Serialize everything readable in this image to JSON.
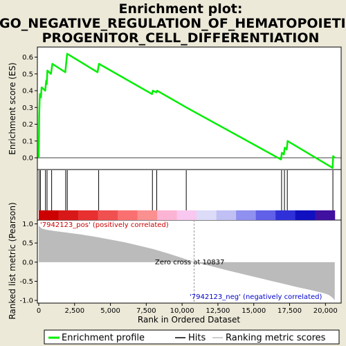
{
  "chart_data": {
    "type": "line",
    "title_lines": [
      "Enrichment plot:",
      "GO_NEGATIVE_REGULATION_OF_HEMATOPOIETIC_",
      "PROGENITOR_CELL_DIFFERENTIATION"
    ],
    "xlabel": "Rank in Ordered Dataset",
    "ylabel_top": "Enrichment score (ES)",
    "ylabel_bottom": "Ranked list metric (Pearson)",
    "xlim": [
      0,
      21000
    ],
    "x_ticks": [
      0,
      2500,
      5000,
      7500,
      10000,
      12500,
      15000,
      17500,
      20000
    ],
    "x_tick_labels": [
      "0",
      "2,500",
      "5,000",
      "7,500",
      "10,000",
      "12,500",
      "15,000",
      "17,500",
      "20,000"
    ],
    "es_ylim": [
      -0.07,
      0.66
    ],
    "es_ticks": [
      0.0,
      0.1,
      0.2,
      0.3,
      0.4,
      0.5,
      0.6
    ],
    "es_tick_labels": [
      "0.0",
      "0.1",
      "0.2",
      "0.3",
      "0.4",
      "0.5",
      "0.6"
    ],
    "metric_ylim": [
      -1.07,
      1.1
    ],
    "metric_ticks": [
      1.0,
      0.5,
      0.0,
      -0.5,
      -1.0
    ],
    "metric_tick_labels": [
      "1.0",
      "0.5",
      "0.0",
      "-0.5",
      "-1.0"
    ],
    "enrichment_profile": {
      "x": [
        0,
        30,
        60,
        80,
        150,
        200,
        450,
        520,
        560,
        600,
        850,
        950,
        1850,
        1920,
        1980,
        4100,
        4200,
        7900,
        7960,
        8200,
        8260,
        10300,
        16900,
        16960,
        17100,
        17160,
        17300,
        17360,
        20500,
        20540,
        20650
      ],
      "es": [
        0.0,
        0.25,
        0.34,
        0.38,
        0.36,
        0.42,
        0.4,
        0.46,
        0.44,
        0.52,
        0.5,
        0.56,
        0.51,
        0.57,
        0.62,
        0.51,
        0.56,
        0.38,
        0.4,
        0.39,
        0.4,
        0.3,
        -0.01,
        0.03,
        0.02,
        0.06,
        0.05,
        0.1,
        -0.06,
        0.01,
        0.0
      ]
    },
    "hits": [
      30,
      120,
      470,
      580,
      900,
      1880,
      1990,
      4180,
      7930,
      8230,
      10290,
      16940,
      17140,
      17340,
      20520
    ],
    "metric_curve": {
      "x": [
        0,
        200,
        500,
        1000,
        2000,
        3000,
        4000,
        5000,
        6000,
        7000,
        8000,
        9000,
        10000,
        10837,
        12000,
        13000,
        14000,
        15000,
        16000,
        17000,
        18000,
        19000,
        19800,
        20200,
        20400,
        20550,
        20650
      ],
      "y": [
        0.95,
        0.88,
        0.85,
        0.82,
        0.77,
        0.72,
        0.66,
        0.59,
        0.52,
        0.43,
        0.34,
        0.23,
        0.11,
        0.0,
        -0.1,
        -0.2,
        -0.29,
        -0.38,
        -0.47,
        -0.56,
        -0.65,
        -0.73,
        -0.8,
        -0.85,
        -0.9,
        -0.95,
        -1.0
      ]
    },
    "heatmap_colors": [
      "#cc0000",
      "#d81818",
      "#e83030",
      "#f05050",
      "#fa7070",
      "#fb9090",
      "#fcb4d4",
      "#f8c8f0",
      "#dcdcf8",
      "#c0c0f4",
      "#9090f0",
      "#6060e8",
      "#3030d8",
      "#1010c0",
      "#4010a0"
    ],
    "zero_cross": 10837,
    "zero_cross_label": "Zero cross at 10837",
    "pos_label": "'7942123_pos' (positively correlated)",
    "neg_label": "'7942123_neg' (negatively correlated)",
    "legend": [
      "Enrichment profile",
      "Hits",
      "Ranking metric scores"
    ],
    "colors": {
      "profile": "#00ee00",
      "hits": "#000000",
      "metric_fill": "#bbbbbb",
      "pos_text": "#cc0000",
      "neg_text": "#0000cc",
      "background": "#ece9d8",
      "panel": "#ffffff"
    }
  }
}
